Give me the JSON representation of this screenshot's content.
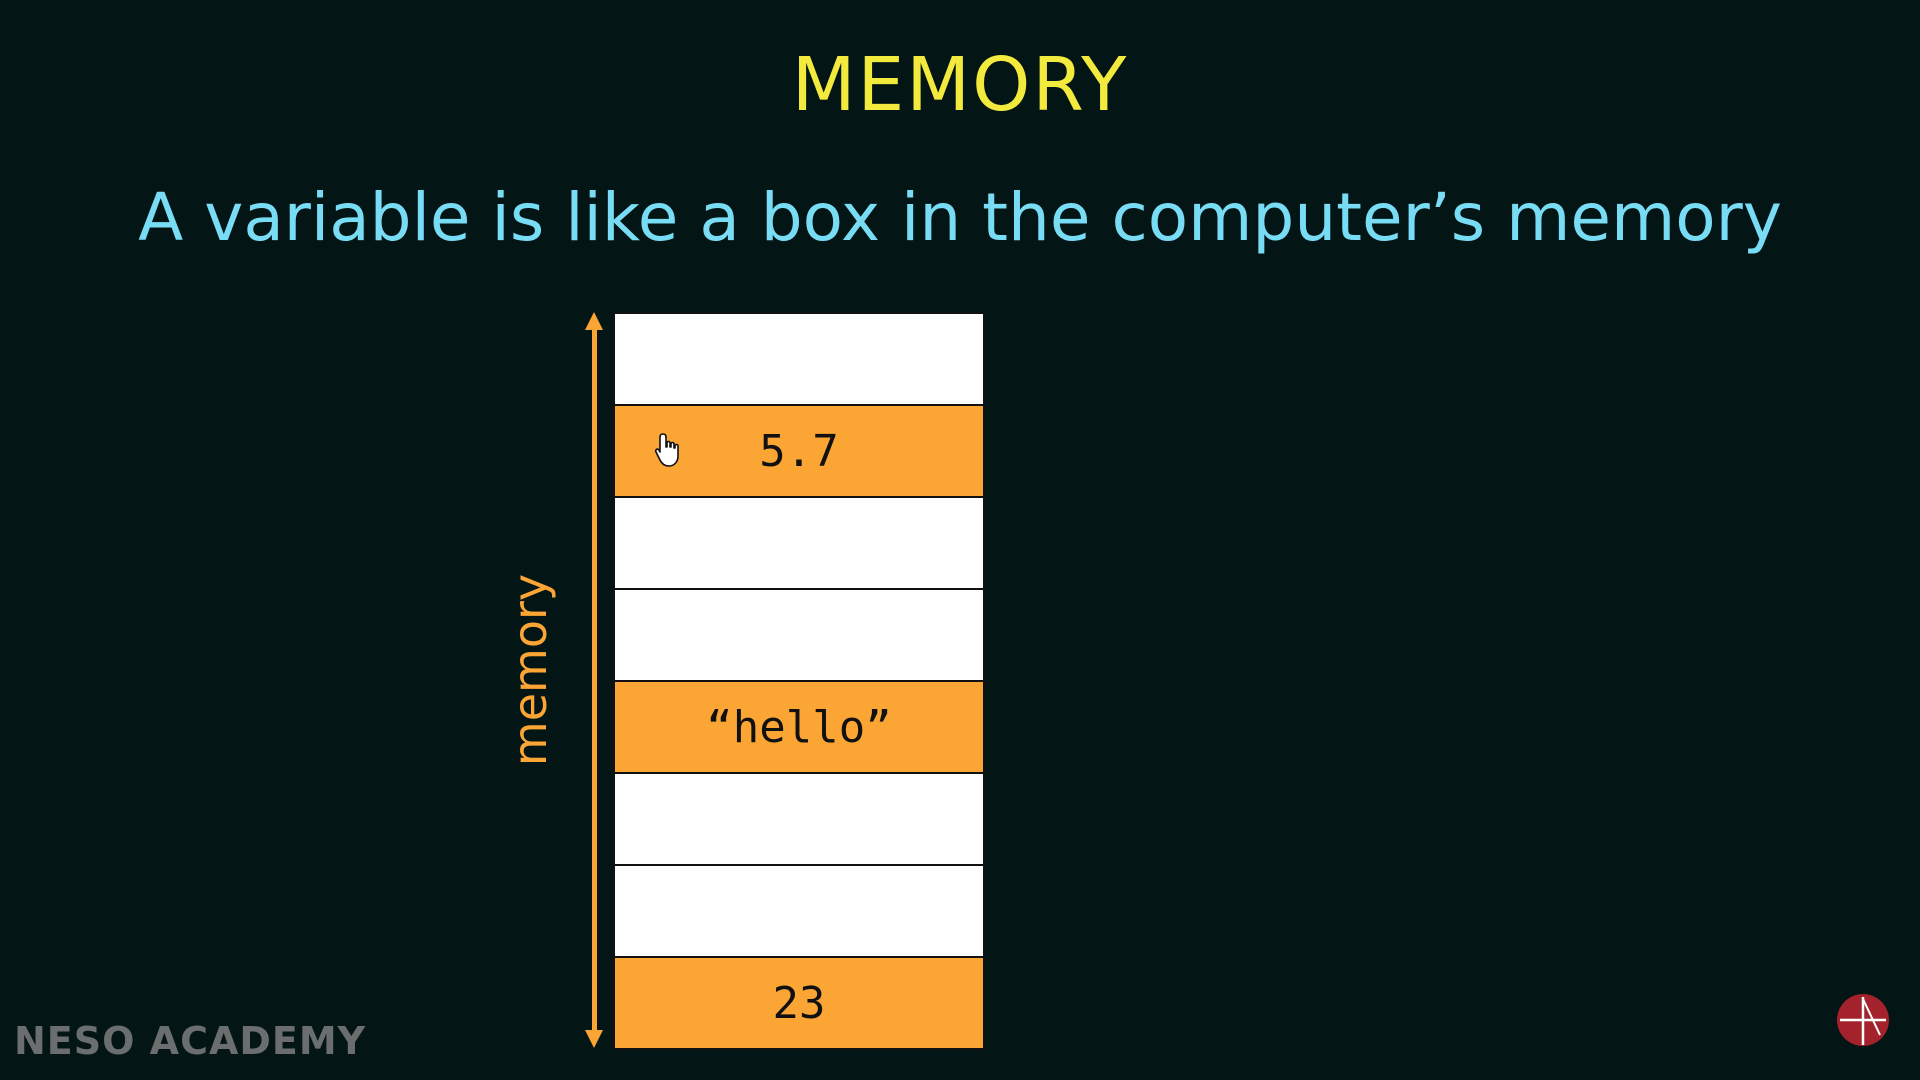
{
  "slide": {
    "title": "MEMORY",
    "subtitle": "A variable is like a box in the computer’s memory"
  },
  "memory": {
    "axis_label": "memory",
    "cells": [
      {
        "value": "",
        "filled": false
      },
      {
        "value": "5.7",
        "filled": true
      },
      {
        "value": "",
        "filled": false
      },
      {
        "value": "",
        "filled": false
      },
      {
        "value": "“hello”",
        "filled": true
      },
      {
        "value": "",
        "filled": false
      },
      {
        "value": "",
        "filled": false
      },
      {
        "value": "23",
        "filled": true
      }
    ]
  },
  "branding": {
    "watermark": "NESO ACADEMY",
    "logo_icon": "neso-logo-icon"
  },
  "colors": {
    "background": "#041515",
    "title": "#f2ea3c",
    "subtitle": "#78dcf5",
    "accent": "#fba534",
    "empty_cell": "#ffffff",
    "watermark": "#6b6e6e",
    "logo": "#a3222c"
  },
  "cursor_icon": "hand-pointer-icon"
}
